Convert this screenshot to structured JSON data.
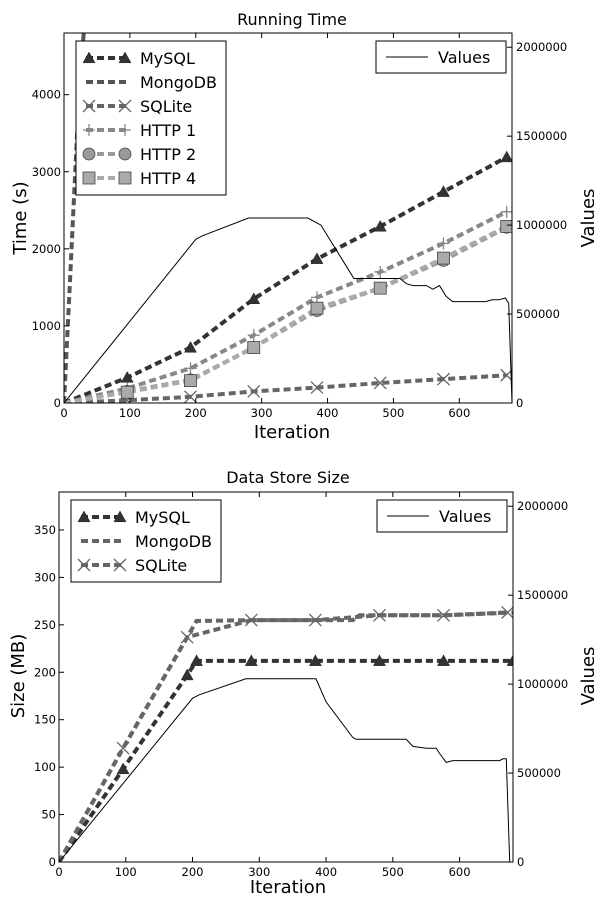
{
  "chart_data": [
    {
      "type": "line",
      "title": "Running Time",
      "xlabel": "Iteration",
      "ylabel": "Time (s)",
      "y2label": "Values",
      "xlim": [
        0,
        680
      ],
      "ylim": [
        0,
        4800
      ],
      "y2lim": [
        0,
        2080000
      ],
      "xticks": [
        "0",
        "100",
        "200",
        "300",
        "400",
        "500",
        "600"
      ],
      "xtick_values": [
        0,
        100,
        200,
        300,
        400,
        500,
        600
      ],
      "yticks": [
        "0",
        "1000",
        "2000",
        "3000",
        "4000"
      ],
      "ytick_values": [
        0,
        1000,
        2000,
        3000,
        4000
      ],
      "y2ticks": [
        "0",
        "500000",
        "1000000",
        "1500000",
        "2000000"
      ],
      "y2tick_values": [
        0,
        500000,
        1000000,
        1500000,
        2000000
      ],
      "legend_left_position": "top-left",
      "legend_right_position": "top-right",
      "series": [
        {
          "name": "MySQL",
          "color": "#333333",
          "marker": "triangle",
          "axis": "left",
          "x": [
            0,
            96,
            192,
            288,
            384,
            480,
            576,
            672
          ],
          "y": [
            0,
            330,
            720,
            1350,
            1870,
            2290,
            2740,
            3190
          ]
        },
        {
          "name": "MongoDB",
          "color": "#555555",
          "marker": "none",
          "axis": "left",
          "x": [
            0,
            8,
            16,
            24,
            30,
            36
          ],
          "y": [
            0,
            1400,
            2800,
            4200,
            4800,
            4900
          ]
        },
        {
          "name": "SQLite",
          "color": "#666666",
          "marker": "x",
          "axis": "left",
          "x": [
            0,
            96,
            192,
            288,
            384,
            480,
            576,
            672
          ],
          "y": [
            0,
            35,
            80,
            150,
            200,
            260,
            310,
            360
          ]
        },
        {
          "name": "HTTP 1",
          "color": "#888888",
          "marker": "plus",
          "axis": "left",
          "x": [
            0,
            96,
            192,
            288,
            384,
            480,
            576,
            672
          ],
          "y": [
            0,
            190,
            450,
            880,
            1370,
            1700,
            2070,
            2480
          ]
        },
        {
          "name": "HTTP 2",
          "color": "#999999",
          "marker": "circle",
          "axis": "left",
          "x": [
            0,
            96,
            192,
            288,
            384,
            480,
            576,
            672
          ],
          "y": [
            0,
            150,
            300,
            720,
            1200,
            1490,
            1850,
            2280
          ]
        },
        {
          "name": "HTTP 4",
          "color": "#aaaaaa",
          "marker": "square",
          "axis": "left",
          "x": [
            0,
            96,
            192,
            288,
            384,
            480,
            576,
            672
          ],
          "y": [
            0,
            140,
            290,
            720,
            1230,
            1490,
            1880,
            2290
          ]
        },
        {
          "name": "Values",
          "color": "#000000",
          "marker": "none",
          "axis": "right",
          "x": [
            0,
            100,
            200,
            210,
            280,
            370,
            390,
            410,
            430,
            440,
            480,
            510,
            520,
            530,
            550,
            560,
            570,
            580,
            590,
            640,
            650,
            660,
            670,
            675,
            680
          ],
          "y": [
            0,
            460000,
            920000,
            940000,
            1040000,
            1040000,
            1000000,
            880000,
            760000,
            700000,
            700000,
            700000,
            670000,
            660000,
            660000,
            640000,
            660000,
            600000,
            570000,
            570000,
            580000,
            580000,
            590000,
            560000,
            0
          ]
        }
      ]
    },
    {
      "type": "line",
      "title": "Data Store Size",
      "xlabel": "Iteration",
      "ylabel": "Size (MB)",
      "y2label": "Values",
      "xlim": [
        0,
        680
      ],
      "ylim": [
        0,
        390
      ],
      "y2lim": [
        0,
        2080000
      ],
      "xticks": [
        "0",
        "100",
        "200",
        "300",
        "400",
        "500",
        "600"
      ],
      "xtick_values": [
        0,
        100,
        200,
        300,
        400,
        500,
        600
      ],
      "yticks": [
        "0",
        "50",
        "100",
        "150",
        "200",
        "250",
        "300",
        "350"
      ],
      "ytick_values": [
        0,
        50,
        100,
        150,
        200,
        250,
        300,
        350
      ],
      "y2ticks": [
        "0",
        "500000",
        "1000000",
        "1500000",
        "2000000"
      ],
      "y2tick_values": [
        0,
        500000,
        1000000,
        1500000,
        2000000
      ],
      "legend_left_position": "top-left",
      "legend_right_position": "top-right",
      "series": [
        {
          "name": "MySQL",
          "color": "#333333",
          "marker": "triangle",
          "axis": "left",
          "x": [
            0,
            96,
            192,
            206,
            288,
            384,
            480,
            576,
            680
          ],
          "y": [
            0,
            98,
            197,
            212,
            212,
            212,
            212,
            212,
            212
          ]
        },
        {
          "name": "MongoDB",
          "color": "#666666",
          "marker": "none",
          "axis": "left",
          "x": [
            0,
            96,
            192,
            206,
            288,
            384,
            440,
            450,
            580,
            680
          ],
          "y": [
            0,
            120,
            237,
            254,
            255,
            255,
            255,
            260,
            260,
            263
          ]
        },
        {
          "name": "SQLite",
          "color": "#666666",
          "marker": "x",
          "axis": "left",
          "x": [
            0,
            96,
            192,
            288,
            384,
            480,
            576,
            672
          ],
          "y": [
            0,
            120,
            237,
            255,
            255,
            260,
            260,
            263
          ]
        },
        {
          "name": "Values",
          "color": "#000000",
          "marker": "none",
          "axis": "right",
          "x": [
            0,
            100,
            200,
            210,
            280,
            330,
            370,
            385,
            400,
            440,
            445,
            500,
            520,
            530,
            550,
            565,
            570,
            580,
            590,
            660,
            665,
            670,
            675
          ],
          "y": [
            0,
            460000,
            920000,
            940000,
            1030000,
            1030000,
            1030000,
            1030000,
            900000,
            700000,
            690000,
            690000,
            690000,
            650000,
            640000,
            640000,
            610000,
            560000,
            570000,
            570000,
            580000,
            580000,
            0
          ]
        }
      ]
    }
  ]
}
